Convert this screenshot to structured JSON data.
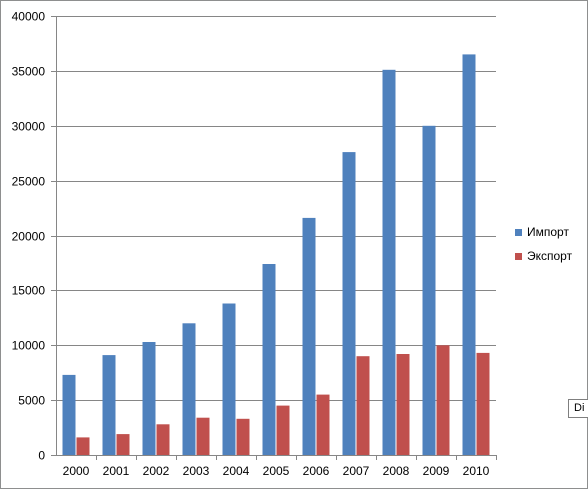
{
  "chart_data": {
    "type": "bar",
    "categories": [
      "2000",
      "2001",
      "2002",
      "2003",
      "2004",
      "2005",
      "2006",
      "2007",
      "2008",
      "2009",
      "2010"
    ],
    "series": [
      {
        "name": "Импорт",
        "color": "#4f81bd",
        "values": [
          7300,
          9100,
          10300,
          12000,
          13800,
          17400,
          21600,
          27600,
          35100,
          30000,
          36500
        ]
      },
      {
        "name": "Экспорт",
        "color": "#c0504d",
        "values": [
          1600,
          1900,
          2800,
          3400,
          3300,
          4500,
          5500,
          9000,
          9200,
          10000,
          9300
        ]
      }
    ],
    "ylim": [
      0,
      40000
    ],
    "yticks": [
      "0",
      "5000",
      "10000",
      "15000",
      "20000",
      "25000",
      "30000",
      "35000",
      "40000"
    ],
    "grid": true,
    "legend": "right",
    "title": "",
    "xlabel": "",
    "ylabel": ""
  },
  "tooltip": {
    "text": "Di"
  }
}
